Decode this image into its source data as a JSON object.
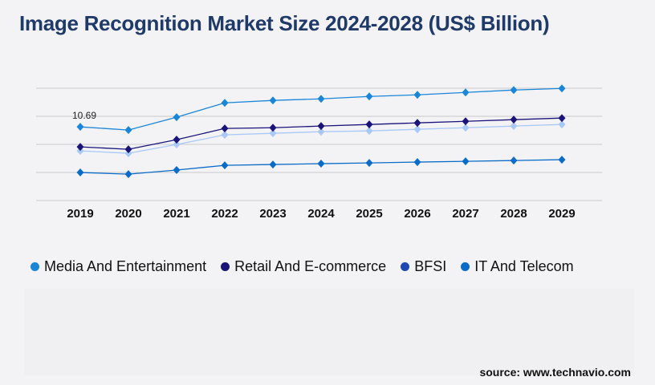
{
  "title": "Image Recognition Market Size 2024-2028 (US$ Billion)",
  "source": "source: www.technavio.com",
  "chart_data": {
    "type": "line",
    "title": "Image Recognition Market Size 2024-2028 (US$ Billion)",
    "categories": [
      "2019",
      "2020",
      "2021",
      "2022",
      "2023",
      "2024",
      "2025",
      "2026",
      "2027",
      "2028",
      "2029"
    ],
    "ylim": [
      0,
      16.3
    ],
    "grid": true,
    "legend_placement": "bottom",
    "annotations": [
      {
        "series": "Media And Entertainment",
        "x": "2019",
        "label": "10.69"
      }
    ],
    "series": [
      {
        "name": "Media And Entertainment",
        "color": "#1a86d8",
        "marker_color": "#1a86d8",
        "values": [
          10.69,
          10.23,
          12.09,
          14.18,
          14.53,
          14.76,
          15.11,
          15.34,
          15.69,
          16.04,
          16.27
        ]
      },
      {
        "name": "Retail And E-commerce",
        "color": "#1a1478",
        "marker_color": "#1a1478",
        "values": [
          7.79,
          7.44,
          8.83,
          10.46,
          10.57,
          10.81,
          11.04,
          11.27,
          11.5,
          11.74,
          11.97
        ]
      },
      {
        "name": "BFSI",
        "color": "#a8c8f8",
        "marker_color": "#1f48b0",
        "values": [
          7.2,
          6.86,
          8.13,
          9.53,
          9.76,
          9.99,
          10.11,
          10.34,
          10.57,
          10.81,
          11.04
        ]
      },
      {
        "name": "IT And Telecom",
        "color": "#0b6cc8",
        "marker_color": "#0b6cc8",
        "values": [
          4.07,
          3.83,
          4.42,
          5.11,
          5.23,
          5.35,
          5.46,
          5.58,
          5.69,
          5.81,
          5.93
        ]
      }
    ]
  }
}
